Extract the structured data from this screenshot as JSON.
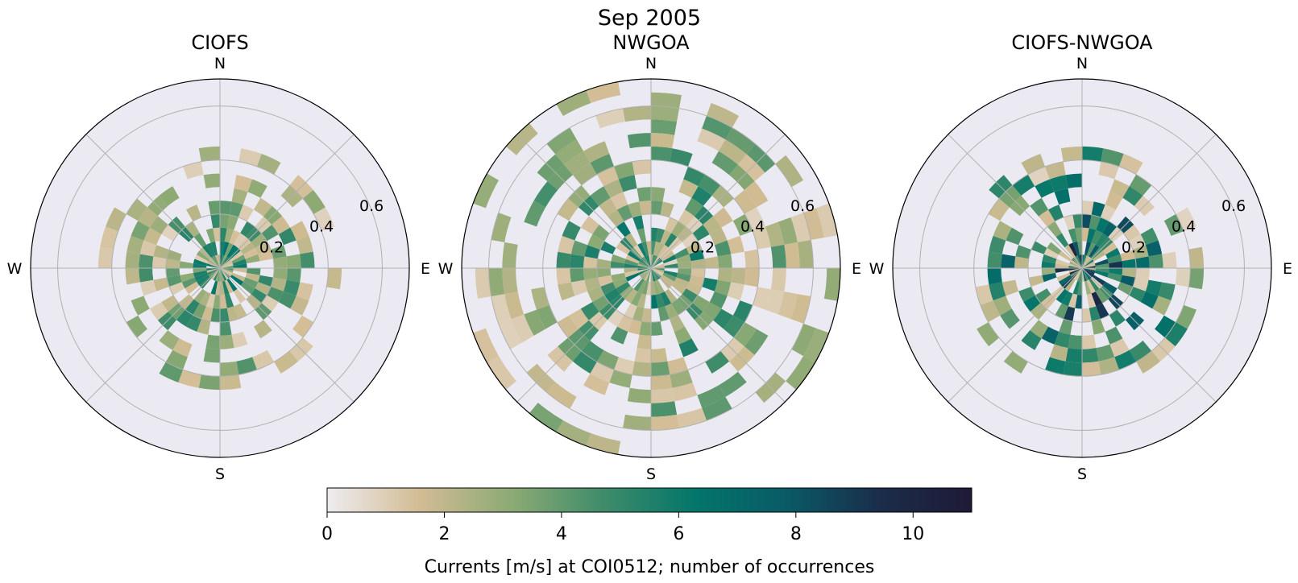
{
  "figure": {
    "suptitle": "Sep 2005"
  },
  "chart_data": [
    {
      "type": "polar-histogram",
      "title": "CIOFS",
      "directions": [
        "N",
        "E",
        "S",
        "W"
      ],
      "radial_ticks": [
        "0.2",
        "0.4",
        "0.6"
      ],
      "rlim": [
        0,
        0.7
      ],
      "bins": {
        "speed_edges": [
          0,
          0.05,
          0.1,
          0.15,
          0.2,
          0.25,
          0.3,
          0.35,
          0.4,
          0.45,
          0.5,
          0.55,
          0.6,
          0.65,
          0.7
        ],
        "direction_bins": 36
      },
      "peak_count": 7,
      "note_extent_max": 0.45
    },
    {
      "type": "polar-histogram",
      "title": "NWGOA",
      "directions": [
        "N",
        "E",
        "S",
        "W"
      ],
      "radial_ticks": [
        "0.2",
        "0.4",
        "0.6"
      ],
      "rlim": [
        0,
        0.7
      ],
      "bins": {
        "speed_edges": [
          0,
          0.05,
          0.1,
          0.15,
          0.2,
          0.25,
          0.3,
          0.35,
          0.4,
          0.45,
          0.5,
          0.55,
          0.6,
          0.65,
          0.7
        ],
        "direction_bins": 36
      },
      "peak_count": 7,
      "note_extent_max": 0.7
    },
    {
      "type": "polar-histogram",
      "title": "CIOFS-NWGOA",
      "directions": [
        "N",
        "E",
        "S",
        "W"
      ],
      "radial_ticks": [
        "0.2",
        "0.4",
        "0.6"
      ],
      "rlim": [
        0,
        0.7
      ],
      "bins": {
        "speed_edges": [
          0,
          0.05,
          0.1,
          0.15,
          0.2,
          0.25,
          0.3,
          0.35,
          0.4,
          0.45,
          0.5,
          0.55,
          0.6,
          0.65,
          0.7
        ],
        "direction_bins": 36
      },
      "peak_count": 11,
      "note_extent_max": 0.45
    }
  ],
  "colorbar": {
    "label": "Currents [m/s] at COI0512; number of occurrences",
    "ticks": [
      "0",
      "2",
      "4",
      "6",
      "8",
      "10"
    ],
    "range": [
      0,
      11
    ],
    "colors": [
      "#eeecf0",
      "#d2bc94",
      "#8caa74",
      "#3f8c6a",
      "#03766a",
      "#0a5a66",
      "#1a2d4a",
      "#1e1a36"
    ]
  },
  "colors": {
    "axes_background": "#ebeaf2",
    "grid": "#b0b0b0",
    "spine": "#000000"
  }
}
